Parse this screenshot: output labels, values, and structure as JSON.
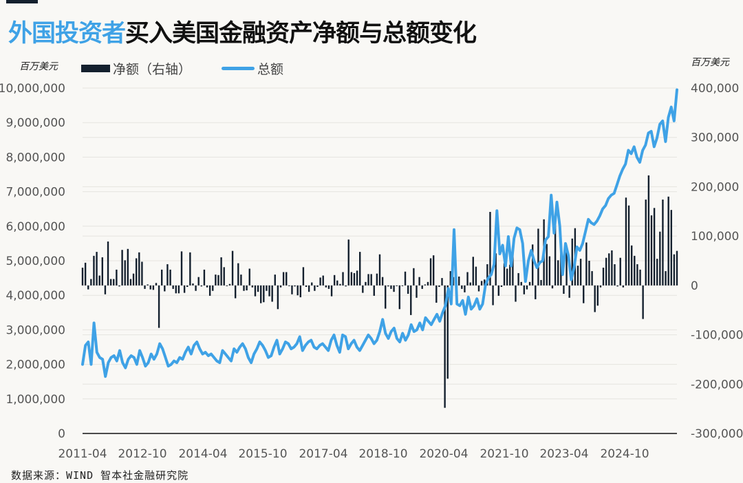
{
  "title": {
    "highlight": "外国投资者",
    "rest": "买入美国金融资产净额与总额变化"
  },
  "units": {
    "left": "百万美元",
    "right": "百万美元"
  },
  "legend": {
    "bar": "净额（右轴）",
    "line": "总额"
  },
  "source": "数据来源：WIND 智本社金融研究院",
  "colors": {
    "bar": "#14202e",
    "line": "#3fa2e6",
    "grid": "#e6e4df",
    "accent": "#3fa2e6"
  },
  "chart_data": {
    "type": "bar+line",
    "title": "外国投资者买入美国金融资产净额与总额变化",
    "xlabel": "",
    "ylabel_left": "百万美元",
    "ylabel_right": "百万美元",
    "x_tick_labels": [
      "2011-04",
      "2012-10",
      "2014-04",
      "2015-10",
      "2017-04",
      "2018-10",
      "2020-04",
      "2021-10",
      "2023-04",
      "2024-10"
    ],
    "left_axis": {
      "ticks": [
        "10,000,000",
        "9,000,000",
        "8,000,000",
        "7,000,000",
        "6,000,000",
        "5,000,000",
        "4,000,000",
        "3,000,000",
        "2,000,000",
        "1,000,000",
        "0"
      ],
      "ylim": [
        0,
        10000000
      ]
    },
    "right_axis": {
      "ticks": [
        "400,000",
        "300,000",
        "200,000",
        "100,000",
        "0",
        "-100,000",
        "-200,000",
        "-300,000"
      ],
      "ylim": [
        -300000,
        400000
      ]
    },
    "grid": true,
    "legend_position": "top-left",
    "start": "2011-04",
    "series": [
      {
        "name": "净额（右轴）",
        "type": "bar",
        "axis": "right",
        "values": [
          36000,
          46000,
          -8000,
          13000,
          60000,
          68000,
          20000,
          57000,
          -18000,
          89000,
          13000,
          13000,
          32000,
          -2000,
          72000,
          51000,
          74000,
          13000,
          24000,
          55000,
          67000,
          48000,
          -7000,
          2000,
          -8000,
          -9000,
          5000,
          -86000,
          32000,
          -12000,
          43000,
          32000,
          -7000,
          -16000,
          -16000,
          69000,
          -15000,
          -3000,
          67000,
          4000,
          -11000,
          17000,
          -2000,
          32000,
          -4000,
          -21000,
          -11000,
          22000,
          21000,
          57000,
          37000,
          0,
          3000,
          70000,
          -26000,
          45000,
          22000,
          -11000,
          -10000,
          34000,
          -4000,
          -22000,
          -13000,
          -36000,
          -34000,
          -11000,
          -22000,
          -33000,
          22000,
          -48000,
          -4000,
          27000,
          27000,
          0,
          -18000,
          -2000,
          -20000,
          -24000,
          37000,
          -3000,
          -13000,
          6000,
          -11000,
          -3000,
          16000,
          20000,
          -4000,
          -7000,
          -22000,
          21000,
          10000,
          3000,
          27000,
          -2000,
          93000,
          27000,
          25000,
          30000,
          68000,
          -15000,
          7000,
          23000,
          23000,
          -21000,
          24000,
          63000,
          17000,
          -47000,
          -2000,
          -7000,
          -13000,
          0,
          -48000,
          0,
          28000,
          -17000,
          -60000,
          35000,
          -25000,
          17000,
          -7000,
          2000,
          7000,
          55000,
          61000,
          -35000,
          -3000,
          15000,
          -248000,
          -189000,
          29000,
          17000,
          -18000,
          18000,
          -7000,
          -14000,
          27000,
          6000,
          58000,
          38000,
          -12000,
          9000,
          12000,
          43000,
          149000,
          -40000,
          65000,
          -21000,
          -3000,
          45000,
          34000,
          42000,
          70000,
          -33000,
          25000,
          7000,
          -18000,
          -8000,
          7000,
          83000,
          -28000,
          115000,
          11000,
          134000,
          84000,
          59000,
          -6000,
          129000,
          51000,
          79000,
          -17000,
          67000,
          -25000,
          95000,
          116000,
          40000,
          54000,
          -36000,
          87000,
          50000,
          29000,
          -54000,
          -41000,
          -4000,
          36000,
          56000,
          65000,
          71000,
          43000,
          -2000,
          56000,
          -4000,
          178000,
          162000,
          81000,
          60000,
          43000,
          32000,
          -68000,
          174000,
          223000,
          142000,
          157000,
          54000,
          109000,
          174000,
          29000,
          180000,
          153000,
          63000,
          70000
        ]
      },
      {
        "name": "总额",
        "type": "line",
        "axis": "left",
        "values": [
          2000000,
          2550000,
          2650000,
          2000000,
          3200000,
          2350000,
          2200000,
          2150000,
          1650000,
          2050000,
          2200000,
          2250000,
          2100000,
          2400000,
          2050000,
          1900000,
          2150000,
          2250000,
          2200000,
          2000000,
          2400000,
          2200000,
          1950000,
          2050000,
          2300000,
          2150000,
          2300000,
          2600000,
          2450000,
          2200000,
          1950000,
          2000000,
          2100000,
          2050000,
          2200000,
          2150000,
          2350000,
          2500000,
          2300000,
          2550000,
          2650000,
          2450000,
          2300000,
          2350000,
          2250000,
          2300000,
          2200000,
          2100000,
          2050000,
          2400000,
          2300000,
          2200000,
          2100000,
          2450000,
          2350000,
          2500000,
          2600000,
          2450000,
          2200000,
          2050000,
          2300000,
          2450000,
          2650000,
          2550000,
          2400000,
          2200000,
          2250000,
          2500000,
          2700000,
          2300000,
          2450000,
          2650000,
          2600000,
          2450000,
          2500000,
          2600000,
          2800000,
          2400000,
          2550000,
          2650000,
          2700000,
          2500000,
          2450000,
          2550000,
          2600000,
          2500000,
          2400000,
          2700000,
          2850000,
          2550000,
          2350000,
          2850000,
          2800000,
          2450000,
          2600000,
          2700000,
          2500000,
          2400000,
          2550000,
          2700000,
          2850000,
          2750000,
          2600000,
          2700000,
          2950000,
          3300000,
          2900000,
          2750000,
          2950000,
          3050000,
          2750000,
          2650000,
          2900000,
          2700000,
          2850000,
          3150000,
          2950000,
          3000000,
          3200000,
          3000000,
          3350000,
          3250000,
          3150000,
          3300000,
          3450000,
          3250000,
          3500000,
          3700000,
          4200000,
          3750000,
          5900000,
          3750000,
          3700000,
          3850000,
          3450000,
          3950000,
          3600000,
          3700000,
          3900000,
          3600000,
          3750000,
          4300000,
          4500000,
          4600000,
          4900000,
          6450000,
          5200000,
          5450000,
          4850000,
          5700000,
          4850000,
          5650000,
          5950000,
          5900000,
          5500000,
          4400000,
          5000000,
          5300000,
          5000000,
          4800000,
          4950000,
          5000000,
          5600000,
          5700000,
          6900000,
          5800000,
          6700000,
          6000000,
          4600000,
          5500000,
          5150000,
          4450000,
          4800000,
          5400000,
          5300000,
          5500000,
          5850000,
          6200000,
          6100000,
          6050000,
          6150000,
          6300000,
          6500000,
          6600000,
          6800000,
          6900000,
          6950000,
          7200000,
          7450000,
          7650000,
          7800000,
          8200000,
          8100000,
          8300000,
          8000000,
          7850000,
          8200000,
          8350000,
          8700000,
          8750000,
          8300000,
          8550000,
          8950000,
          9050000,
          8450000,
          9150000,
          9450000,
          9050000,
          9950000
        ]
      }
    ]
  }
}
